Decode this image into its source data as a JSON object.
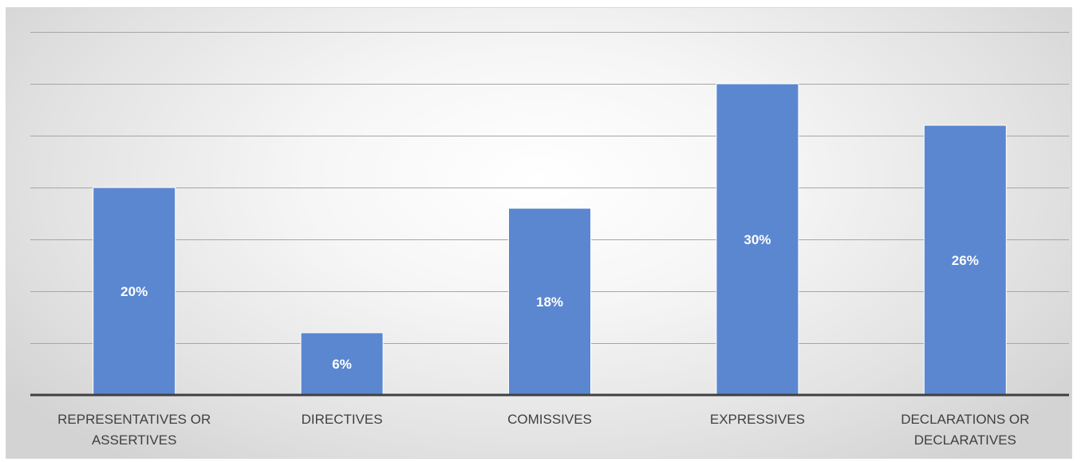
{
  "chart_data": {
    "type": "bar",
    "categories": [
      [
        "REPRESENTATIVES OR",
        "ASSERTIVES"
      ],
      [
        "DIRECTIVES"
      ],
      [
        "COMISSIVES"
      ],
      [
        "EXPRESSIVES"
      ],
      [
        "DECLARATIONS OR",
        "DECLARATIVES"
      ]
    ],
    "values": [
      20,
      6,
      18,
      30,
      26
    ],
    "data_labels": [
      "20%",
      "6%",
      "18%",
      "30%",
      "26%"
    ],
    "ylim": [
      0,
      35
    ],
    "y_gridline_step": 5,
    "grid": true,
    "legend": "none",
    "colors": {
      "bar": "#5b87d0",
      "bar_edge": "#ffffff",
      "gridline": "#a6a6a6",
      "baseline": "#404040",
      "label_text": "#404040",
      "data_label_text": "#ffffff"
    }
  }
}
